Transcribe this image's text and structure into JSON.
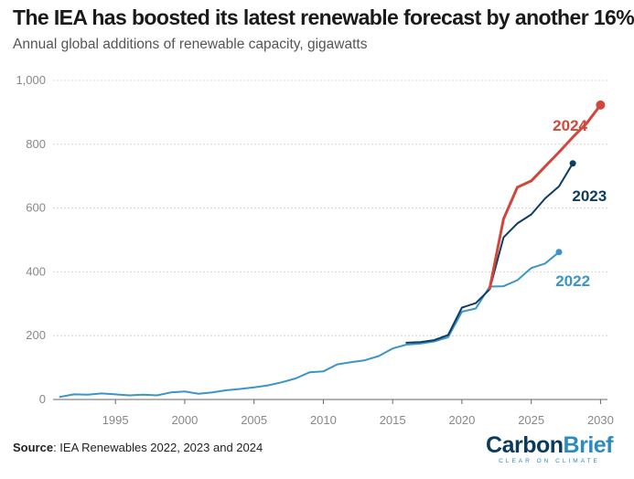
{
  "title": "The IEA has boosted its latest renewable forecast by another 16%",
  "subtitle": "Annual global additions of renewable capacity, gigawatts",
  "source": {
    "label": "Source",
    "text": ": IEA Renewables 2022, 2023 and 2024"
  },
  "brand": {
    "name_part1": "Carbon",
    "name_part2": "Brief",
    "tagline": "CLEAR ON CLIMATE"
  },
  "chart_data": {
    "type": "line",
    "title": "The IEA has boosted its latest renewable forecast by another 16%",
    "ylabel": "",
    "xlabel": "",
    "xlim": [
      1990.5,
      2030.5
    ],
    "ylim": [
      0,
      1000
    ],
    "yticks": [
      0,
      200,
      400,
      600,
      800,
      1000
    ],
    "ytick_labels": [
      "0",
      "200",
      "400",
      "600",
      "800",
      "1,000"
    ],
    "xticks": [
      1995,
      2000,
      2005,
      2010,
      2015,
      2020,
      2025,
      2030
    ],
    "xtick_labels": [
      "1995",
      "2000",
      "2005",
      "2010",
      "2015",
      "2020",
      "2025",
      "2030"
    ],
    "grid": true,
    "legend": "inline labels at line ends",
    "series": [
      {
        "name": "2022",
        "color": "#3a95c9",
        "label_at": [
          2028,
          355
        ],
        "endpoint": true,
        "points": [
          [
            1991,
            8
          ],
          [
            1992,
            16
          ],
          [
            1993,
            15
          ],
          [
            1994,
            19
          ],
          [
            1995,
            16
          ],
          [
            1996,
            13
          ],
          [
            1997,
            15
          ],
          [
            1998,
            13
          ],
          [
            1999,
            22
          ],
          [
            2000,
            25
          ],
          [
            2001,
            18
          ],
          [
            2002,
            22
          ],
          [
            2003,
            29
          ],
          [
            2004,
            33
          ],
          [
            2005,
            38
          ],
          [
            2006,
            44
          ],
          [
            2007,
            54
          ],
          [
            2008,
            66
          ],
          [
            2009,
            85
          ],
          [
            2010,
            88
          ],
          [
            2011,
            110
          ],
          [
            2012,
            117
          ],
          [
            2013,
            123
          ],
          [
            2014,
            136
          ],
          [
            2015,
            160
          ],
          [
            2016,
            172
          ],
          [
            2017,
            175
          ],
          [
            2018,
            182
          ],
          [
            2019,
            195
          ],
          [
            2020,
            275
          ],
          [
            2021,
            285
          ],
          [
            2022,
            354
          ],
          [
            2023,
            355
          ],
          [
            2024,
            374
          ],
          [
            2025,
            412
          ],
          [
            2026,
            426
          ],
          [
            2027,
            462
          ]
        ]
      },
      {
        "name": "2023",
        "color": "#0d3d62",
        "label_at": [
          2029.2,
          622
        ],
        "endpoint": true,
        "points": [
          [
            2016,
            178
          ],
          [
            2017,
            180
          ],
          [
            2018,
            186
          ],
          [
            2019,
            202
          ],
          [
            2020,
            288
          ],
          [
            2021,
            302
          ],
          [
            2022,
            345
          ],
          [
            2023,
            508
          ],
          [
            2024,
            552
          ],
          [
            2025,
            580
          ],
          [
            2026,
            630
          ],
          [
            2027,
            668
          ],
          [
            2028,
            740
          ]
        ]
      },
      {
        "name": "2024",
        "color": "#d0473b",
        "label_at": [
          2027.8,
          842
        ],
        "endpoint": true,
        "points": [
          [
            2022,
            347
          ],
          [
            2023,
            566
          ],
          [
            2024,
            665
          ],
          [
            2025,
            685
          ],
          [
            2026,
            730
          ],
          [
            2027,
            775
          ],
          [
            2028,
            822
          ],
          [
            2029,
            866
          ],
          [
            2030,
            923
          ]
        ]
      }
    ]
  }
}
